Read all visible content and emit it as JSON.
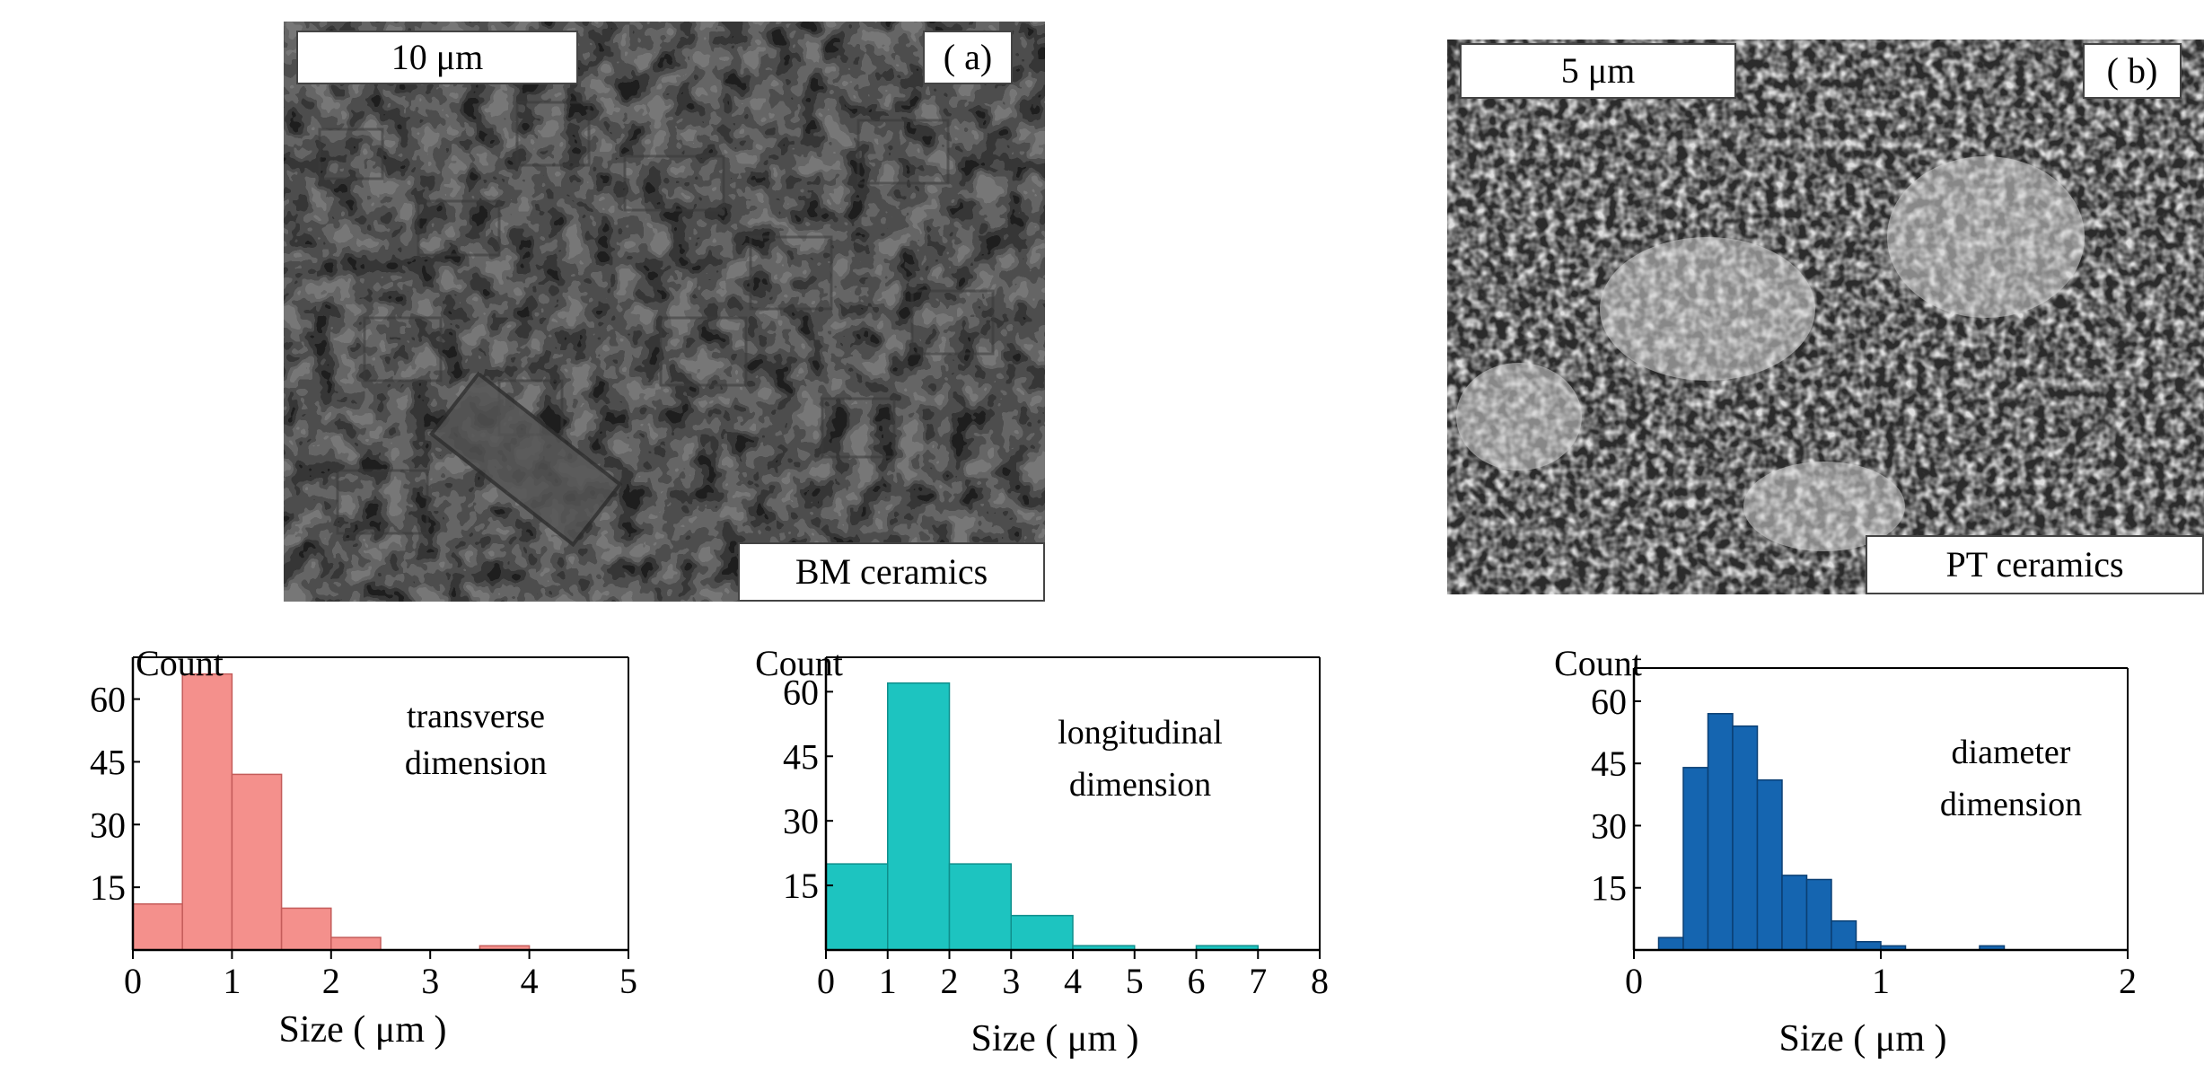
{
  "panels": [
    {
      "id": "a",
      "panel_label": "( a)",
      "scale_bar": "10 μm",
      "material": "BM ceramics"
    },
    {
      "id": "b",
      "panel_label": "( b)",
      "scale_bar": "5 μm",
      "material": "PT ceramics"
    }
  ],
  "chart_data": [
    {
      "type": "bar",
      "ylabel": "Count",
      "xlabel": "Size  ( μm )",
      "annotation": [
        "transverse",
        "dimension"
      ],
      "color": "#f4908c",
      "edge": "#c45c5a",
      "xlim": [
        0,
        5
      ],
      "ylim": [
        0,
        70
      ],
      "xticks": [
        0,
        1,
        2,
        3,
        4,
        5
      ],
      "yticks": [
        15,
        30,
        45,
        60
      ],
      "bin_width": 0.5,
      "bins": [
        0,
        0.5,
        1.0,
        1.5,
        2.0,
        2.5,
        3.0,
        3.5
      ],
      "values": [
        11,
        66,
        42,
        10,
        3,
        0,
        0,
        1
      ]
    },
    {
      "type": "bar",
      "ylabel": "Count",
      "xlabel": "Size  ( μm )",
      "annotation": [
        "longitudinal",
        "dimension"
      ],
      "color": "#1dc4c0",
      "edge": "#0f8f8c",
      "xlim": [
        0,
        8
      ],
      "ylim": [
        0,
        68
      ],
      "xticks": [
        0,
        1,
        2,
        3,
        4,
        5,
        6,
        7,
        8
      ],
      "yticks": [
        15,
        30,
        45,
        60
      ],
      "bin_width": 1,
      "bins": [
        0,
        1,
        2,
        3,
        4,
        5,
        6,
        7
      ],
      "values": [
        20,
        62,
        20,
        8,
        1,
        0,
        1,
        0
      ]
    },
    {
      "type": "bar",
      "ylabel": "Count",
      "xlabel": "Size  ( μm )",
      "annotation": [
        "diameter",
        "dimension"
      ],
      "color": "#1565b0",
      "edge": "#0b3f73",
      "xlim": [
        0,
        2
      ],
      "ylim": [
        0,
        68
      ],
      "xticks": [
        0,
        1,
        2
      ],
      "yticks": [
        15,
        30,
        45,
        60
      ],
      "bin_width": 0.1,
      "bins": [
        0.1,
        0.2,
        0.3,
        0.4,
        0.5,
        0.6,
        0.7,
        0.8,
        0.9,
        1.0,
        1.1,
        1.2,
        1.3,
        1.4
      ],
      "values": [
        3,
        44,
        57,
        54,
        41,
        18,
        17,
        7,
        2,
        1,
        0,
        0,
        0,
        1
      ]
    }
  ]
}
